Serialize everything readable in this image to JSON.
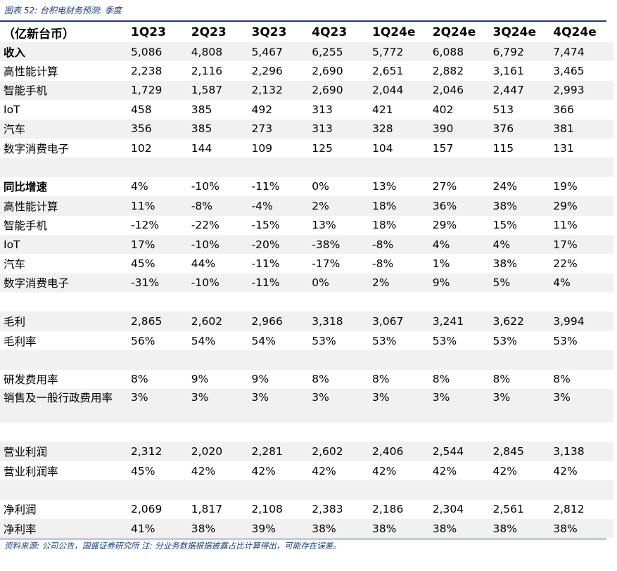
{
  "caption": "图表 52: 台积电财务预测: 季度",
  "header": [
    "（亿新台币）",
    "1Q23",
    "2Q23",
    "3Q23",
    "4Q23",
    "1Q24e",
    "2Q24e",
    "3Q24e",
    "4Q24e"
  ],
  "rows": [
    {
      "label": "收入",
      "values": [
        "5,086",
        "4,808",
        "5,467",
        "6,255",
        "5,772",
        "6,088",
        "6,792",
        "7,474"
      ],
      "bold": true,
      "shade": true
    },
    {
      "label": "高性能计算",
      "values": [
        "2,238",
        "2,116",
        "2,296",
        "2,690",
        "2,651",
        "2,882",
        "3,161",
        "3,465"
      ],
      "shade": false
    },
    {
      "label": "智能手机",
      "values": [
        "1,729",
        "1,587",
        "2,132",
        "2,690",
        "2,044",
        "2,046",
        "2,447",
        "2,993"
      ],
      "shade": true
    },
    {
      "label": "IoT",
      "values": [
        "458",
        "385",
        "492",
        "313",
        "421",
        "402",
        "513",
        "366"
      ],
      "shade": false
    },
    {
      "label": "汽车",
      "values": [
        "356",
        "385",
        "273",
        "313",
        "328",
        "390",
        "376",
        "381"
      ],
      "shade": true
    },
    {
      "label": "数字消费电子",
      "values": [
        "102",
        "144",
        "109",
        "125",
        "104",
        "157",
        "115",
        "131"
      ],
      "shade": false
    },
    {
      "label": "",
      "values": [
        "",
        "",
        "",
        "",
        "",
        "",
        "",
        ""
      ],
      "shade": true
    },
    {
      "label": "同比增速",
      "values": [
        "4%",
        "-10%",
        "-11%",
        "0%",
        "13%",
        "27%",
        "24%",
        "19%"
      ],
      "bold": true,
      "shade": false
    },
    {
      "label": "高性能计算",
      "values": [
        "11%",
        "-8%",
        "-4%",
        "2%",
        "18%",
        "36%",
        "38%",
        "29%"
      ],
      "shade": true
    },
    {
      "label": "智能手机",
      "values": [
        "-12%",
        "-22%",
        "-15%",
        "13%",
        "18%",
        "29%",
        "15%",
        "11%"
      ],
      "shade": false
    },
    {
      "label": "IoT",
      "values": [
        "17%",
        "-10%",
        "-20%",
        "-38%",
        "-8%",
        "4%",
        "4%",
        "17%"
      ],
      "shade": true
    },
    {
      "label": "汽车",
      "values": [
        "45%",
        "44%",
        "-11%",
        "-17%",
        "-8%",
        "1%",
        "38%",
        "22%"
      ],
      "shade": false
    },
    {
      "label": "数字消费电子",
      "values": [
        "-31%",
        "-10%",
        "-11%",
        "0%",
        "2%",
        "9%",
        "5%",
        "4%"
      ],
      "shade": true
    },
    {
      "label": "",
      "values": [
        "",
        "",
        "",
        "",
        "",
        "",
        "",
        ""
      ],
      "shade": false
    },
    {
      "label": "毛利",
      "values": [
        "2,865",
        "2,602",
        "2,966",
        "3,318",
        "3,067",
        "3,241",
        "3,622",
        "3,994"
      ],
      "shade": true
    },
    {
      "label": "毛利率",
      "values": [
        "56%",
        "54%",
        "54%",
        "53%",
        "53%",
        "53%",
        "53%",
        "53%"
      ],
      "shade": false
    },
    {
      "label": "",
      "values": [
        "",
        "",
        "",
        "",
        "",
        "",
        "",
        ""
      ],
      "shade": true
    },
    {
      "label": "研发费用率",
      "values": [
        "8%",
        "9%",
        "9%",
        "8%",
        "8%",
        "8%",
        "8%",
        "8%"
      ],
      "shade": false
    },
    {
      "label": "销售及一般行政费用率",
      "values": [
        "3%",
        "3%",
        "3%",
        "3%",
        "3%",
        "3%",
        "3%",
        "3%"
      ],
      "shade": true,
      "tall": true
    },
    {
      "label": "",
      "values": [
        "",
        "",
        "",
        "",
        "",
        "",
        "",
        ""
      ],
      "shade": false
    },
    {
      "label": "营业利润",
      "values": [
        "2,312",
        "2,020",
        "2,281",
        "2,602",
        "2,406",
        "2,544",
        "2,845",
        "3,138"
      ],
      "shade": true
    },
    {
      "label": "营业利润率",
      "values": [
        "45%",
        "42%",
        "42%",
        "42%",
        "42%",
        "42%",
        "42%",
        "42%"
      ],
      "shade": false
    },
    {
      "label": "",
      "values": [
        "",
        "",
        "",
        "",
        "",
        "",
        "",
        ""
      ],
      "shade": true
    },
    {
      "label": "净利润",
      "values": [
        "2,069",
        "1,817",
        "2,108",
        "2,383",
        "2,186",
        "2,304",
        "2,561",
        "2,812"
      ],
      "shade": false
    },
    {
      "label": "净利率",
      "values": [
        "41%",
        "38%",
        "39%",
        "38%",
        "38%",
        "38%",
        "38%",
        "38%"
      ],
      "shade": true
    }
  ],
  "footer": "资料来源: 公司公告，国盛证券研究所   注: 分业务数据根据披露占比计算得出，可能存在误差。"
}
